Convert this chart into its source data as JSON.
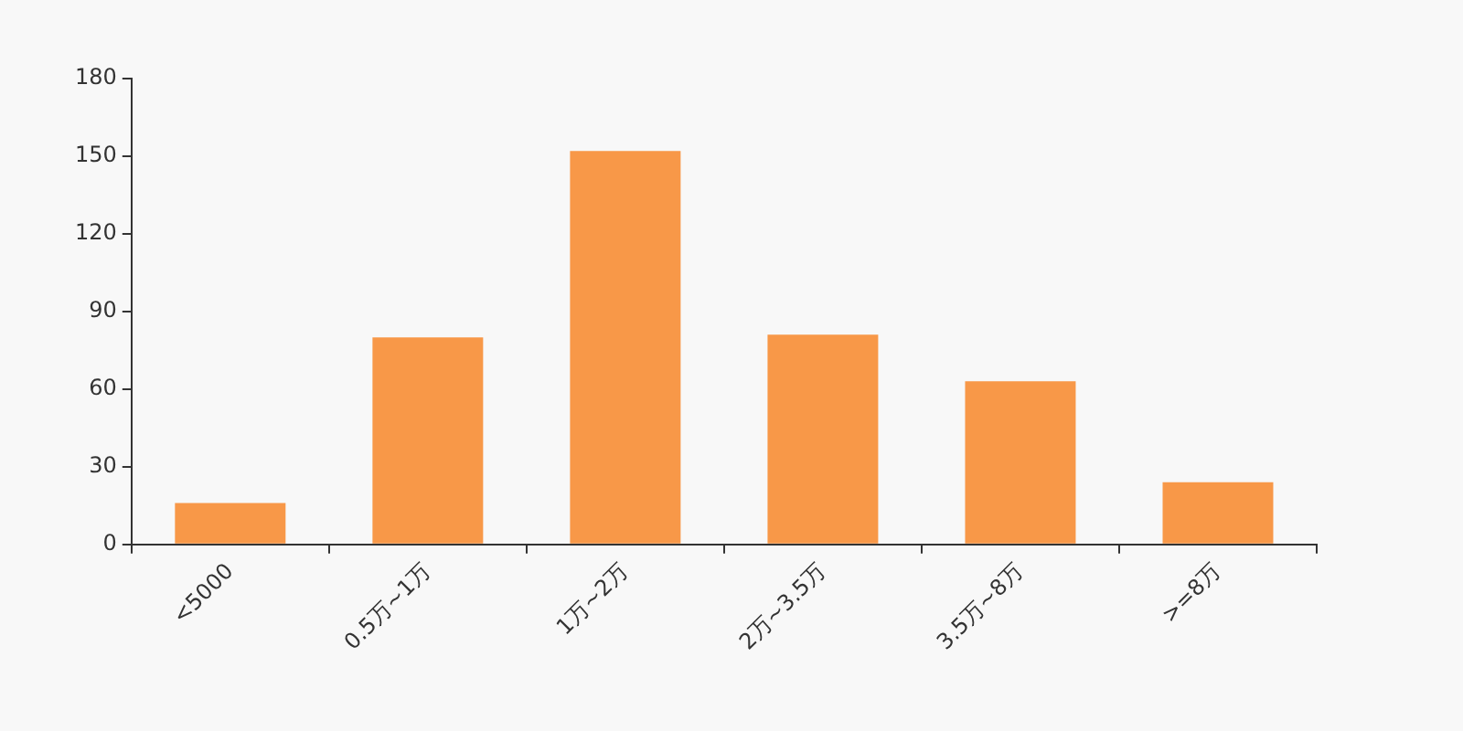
{
  "chart_data": {
    "type": "bar",
    "categories": [
      "<5000",
      "0.5万~1万",
      "1万~2万",
      "2万~3.5万",
      "3.5万~8万",
      ">=8万"
    ],
    "values": [
      16,
      80,
      152,
      81,
      63,
      24
    ],
    "color": "#f89848",
    "ylim": [
      0,
      180
    ],
    "yticks": [
      0,
      30,
      60,
      90,
      120,
      150,
      180
    ],
    "grid": false,
    "legend": false
  }
}
